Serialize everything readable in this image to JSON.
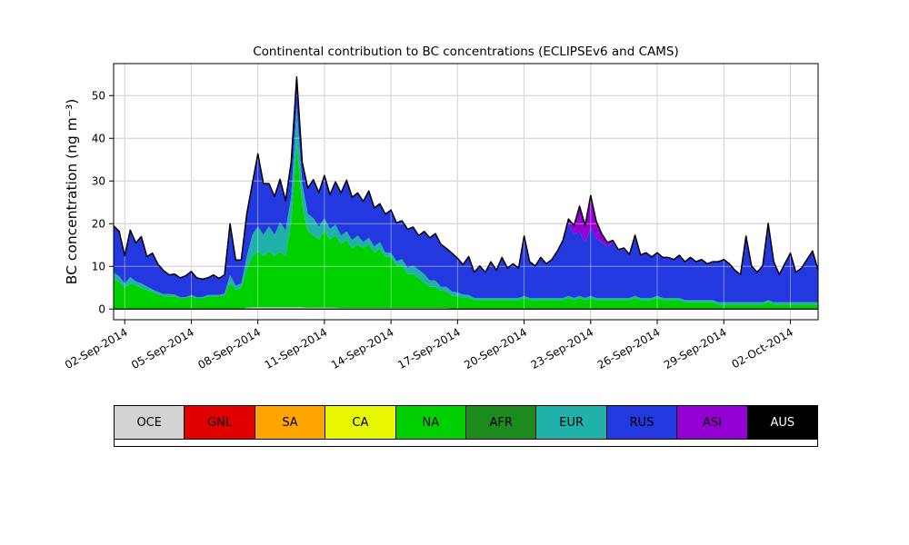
{
  "chart_data": {
    "type": "area",
    "stacked": true,
    "title": "Continental contribution to BC concentrations (ECLIPSEv6 and CAMS)",
    "xlabel": "",
    "ylabel": "BC concentration (ng m⁻³)",
    "x_unit": "days since 02-Sep-2014",
    "x_start": -0.5,
    "x_step": 0.25,
    "n_points": 128,
    "xlim": [
      -0.5,
      31.25
    ],
    "ylim": [
      -2.5,
      57.5
    ],
    "x_ticks": [
      0,
      3,
      6,
      9,
      12,
      15,
      18,
      21,
      24,
      27,
      30
    ],
    "x_tick_labels": [
      "02-Sep-2014",
      "05-Sep-2014",
      "08-Sep-2014",
      "11-Sep-2014",
      "14-Sep-2014",
      "17-Sep-2014",
      "20-Sep-2014",
      "23-Sep-2014",
      "26-Sep-2014",
      "29-Sep-2014",
      "02-Oct-2014"
    ],
    "y_ticks": [
      0,
      10,
      20,
      30,
      40,
      50
    ],
    "y_tick_labels": [
      "0",
      "10",
      "20",
      "30",
      "40",
      "50"
    ],
    "grid": true,
    "grid_color": "#b0b0b0",
    "axis_color": "#000000",
    "outline_color": "#000000",
    "legend_position": "below",
    "series": [
      {
        "name": "OCE",
        "color": "#d3d3d3",
        "label_color": "#000000",
        "values": [
          0,
          0,
          0,
          0,
          0,
          0,
          0,
          0,
          0,
          0,
          0,
          0,
          0,
          0,
          0,
          0,
          0,
          0,
          0,
          0,
          0,
          0,
          0,
          0,
          0.3,
          0.4,
          0.4,
          0.4,
          0.4,
          0.4,
          0.4,
          0.4,
          0.4,
          0.4,
          0.4,
          0.3,
          0.3,
          0.3,
          0.3,
          0.3,
          0.3,
          0.2,
          0.2,
          0.2,
          0.2,
          0.2,
          0.2,
          0.2,
          0.2,
          0.2,
          0.2,
          0.2,
          0.2,
          0.2,
          0.2,
          0.2,
          0.2,
          0.2,
          0.2,
          0.2,
          0.2,
          0.1,
          0.1,
          0.1,
          0.1,
          0.1,
          0.1,
          0.1,
          0.1,
          0.1,
          0.1,
          0.1,
          0.1,
          0.1,
          0.1,
          0.1,
          0.1,
          0.1,
          0.1,
          0.1,
          0.1,
          0.1,
          0.1,
          0.1,
          0.1,
          0.1,
          0.1,
          0.1,
          0.1,
          0.1,
          0.1,
          0.1,
          0.1,
          0.1,
          0.1,
          0.1,
          0.1,
          0.1,
          0.1,
          0.1,
          0.1,
          0.1,
          0.1,
          0.1,
          0.1,
          0.1,
          0.1,
          0.1,
          0.1,
          0.1,
          0.1,
          0.1,
          0.1,
          0.1,
          0.1,
          0.1,
          0.1,
          0.1,
          0.1,
          0.1,
          0.1,
          0.1,
          0.1,
          0.1,
          0.1,
          0.1,
          0.1,
          0.1
        ]
      },
      {
        "name": "GNL",
        "color": "#e00000",
        "label_color": "#000000",
        "values": 0
      },
      {
        "name": "SA",
        "color": "#ffa500",
        "label_color": "#000000",
        "values": 0
      },
      {
        "name": "CA",
        "color": "#e8f800",
        "label_color": "#000000",
        "values": 0
      },
      {
        "name": "NA",
        "color": "#00cf00",
        "label_color": "#000000",
        "values": [
          7,
          6.5,
          5,
          6,
          5.5,
          5,
          4.5,
          4,
          3.5,
          3,
          3,
          3,
          2.5,
          2.5,
          3,
          2.5,
          2.5,
          3,
          3,
          3,
          3.2,
          6,
          4.5,
          5,
          9,
          12,
          13,
          12,
          13,
          12,
          13,
          12,
          20,
          38,
          24,
          18,
          17,
          16,
          18,
          16,
          17,
          15,
          16,
          14,
          15,
          14,
          15,
          13,
          14,
          12,
          12,
          10,
          10,
          8,
          8,
          7,
          6,
          5,
          5,
          4,
          4,
          3,
          3,
          2.5,
          2.5,
          2,
          2,
          2,
          2,
          2,
          2,
          2,
          2,
          2,
          2.5,
          2,
          2,
          2,
          2,
          2,
          2,
          2,
          2.5,
          2,
          2.5,
          2,
          2.5,
          2,
          2,
          2,
          2,
          2,
          2,
          2,
          2.5,
          2,
          2,
          2,
          2.5,
          2,
          2,
          2,
          2,
          1.5,
          1.5,
          1.5,
          1.5,
          1.5,
          1.5,
          1,
          1,
          1,
          1,
          1,
          1,
          1,
          1,
          1,
          1.5,
          1,
          1,
          1,
          1,
          1,
          1,
          1,
          1,
          1
        ]
      },
      {
        "name": "AFR",
        "color": "#1d8a1d",
        "label_color": "#000000",
        "values": 0
      },
      {
        "name": "EUR",
        "color": "#20b2aa",
        "label_color": "#000000",
        "values": [
          1.5,
          1.2,
          1,
          1.5,
          1,
          1,
          0.8,
          0.6,
          0.5,
          0.5,
          0.5,
          0.4,
          0.3,
          0.3,
          0.3,
          0.3,
          0.3,
          0.3,
          0.3,
          0.3,
          0.4,
          2,
          1,
          1,
          3,
          5,
          6,
          5,
          6,
          5,
          7,
          6,
          6,
          9,
          5,
          4,
          4,
          3,
          3,
          2.5,
          2.5,
          2,
          2,
          2,
          2,
          1.5,
          1.5,
          1.5,
          1.5,
          1,
          1,
          1,
          1.5,
          1.5,
          2,
          2,
          2,
          1.5,
          1.5,
          1,
          1,
          1,
          0.8,
          0.8,
          0.7,
          0.5,
          0.5,
          0.5,
          0.5,
          0.5,
          0.5,
          0.5,
          0.5,
          0.5,
          0.5,
          0.5,
          0.5,
          0.5,
          0.5,
          0.5,
          0.5,
          0.5,
          0.5,
          0.5,
          0.5,
          0.5,
          0.5,
          0.5,
          0.5,
          0.5,
          0.5,
          0.5,
          0.5,
          0.5,
          0.5,
          0.5,
          0.5,
          0.5,
          0.5,
          0.5,
          0.5,
          0.5,
          0.5,
          0.5,
          0.5,
          0.5,
          0.5,
          0.5,
          0.5,
          0.5,
          0.5,
          0.5,
          0.5,
          0.5,
          0.5,
          0.5,
          0.5,
          0.5,
          0.5,
          0.5,
          0.5,
          0.5,
          0.5,
          0.5,
          0.5,
          0.5,
          0.5,
          0.5
        ]
      },
      {
        "name": "RUS",
        "color": "#2438e0",
        "label_color": "#000000",
        "values": [
          11,
          10.5,
          6.5,
          11,
          9,
          11,
          7,
          8.5,
          6.5,
          5.5,
          4.5,
          4.8,
          4.5,
          5,
          5.5,
          4.5,
          4.2,
          4,
          4.7,
          3.9,
          4.4,
          12,
          6,
          5.5,
          10,
          12,
          17,
          12,
          10,
          9,
          10,
          7,
          8,
          7,
          5,
          6,
          9,
          8,
          10,
          8,
          10,
          10,
          12,
          10,
          10,
          9.5,
          11,
          9,
          9,
          9,
          10,
          9,
          9,
          9,
          9,
          8,
          10,
          10,
          11,
          10,
          9,
          9,
          8,
          7,
          9,
          6,
          7.5,
          6,
          8.5,
          6.5,
          9.5,
          7,
          8,
          7,
          14,
          8.5,
          7.5,
          9.5,
          8,
          9,
          11,
          13.5,
          17,
          15,
          15,
          13,
          16,
          14,
          13,
          12,
          13,
          11,
          11.5,
          10,
          14,
          10,
          10.5,
          9.5,
          10,
          9.5,
          9.5,
          9,
          10,
          9,
          10,
          9,
          9.5,
          8.5,
          9,
          9.5,
          10,
          9,
          7.5,
          6.5,
          15.5,
          8.5,
          7,
          8.5,
          18,
          9.5,
          6.5,
          9,
          11.5,
          7,
          8,
          10,
          12,
          7.5
        ]
      },
      {
        "name": "ASI",
        "color": "#9400d3",
        "label_color": "#000000",
        "values": [
          0,
          0,
          0,
          0,
          0,
          0,
          0,
          0,
          0,
          0,
          0,
          0,
          0,
          0,
          0,
          0,
          0,
          0,
          0,
          0,
          0,
          0,
          0,
          0,
          0,
          0,
          0,
          0,
          0,
          0,
          0,
          0,
          0,
          0,
          0,
          0,
          0,
          0,
          0,
          0,
          0,
          0,
          0,
          0,
          0,
          0,
          0,
          0,
          0,
          0,
          0,
          0,
          0,
          0,
          0,
          0,
          0,
          0,
          0,
          0,
          0,
          0,
          0,
          0,
          0,
          0,
          0,
          0,
          0,
          0,
          0,
          0,
          0,
          0,
          0,
          0,
          0,
          0,
          0,
          0,
          0,
          0,
          1,
          2,
          6,
          4,
          7.5,
          4,
          2,
          1,
          0.5,
          0.3,
          0.2,
          0.2,
          0.2,
          0.1,
          0.1,
          0.1,
          0.1,
          0,
          0,
          0,
          0,
          0,
          0,
          0,
          0,
          0,
          0,
          0,
          0,
          0,
          0,
          0,
          0,
          0,
          0,
          0,
          0,
          0,
          0,
          0,
          0,
          0,
          0,
          0,
          0,
          0
        ]
      },
      {
        "name": "AUS",
        "color": "#000000",
        "label_color": "#ffffff",
        "values": 0
      }
    ]
  }
}
